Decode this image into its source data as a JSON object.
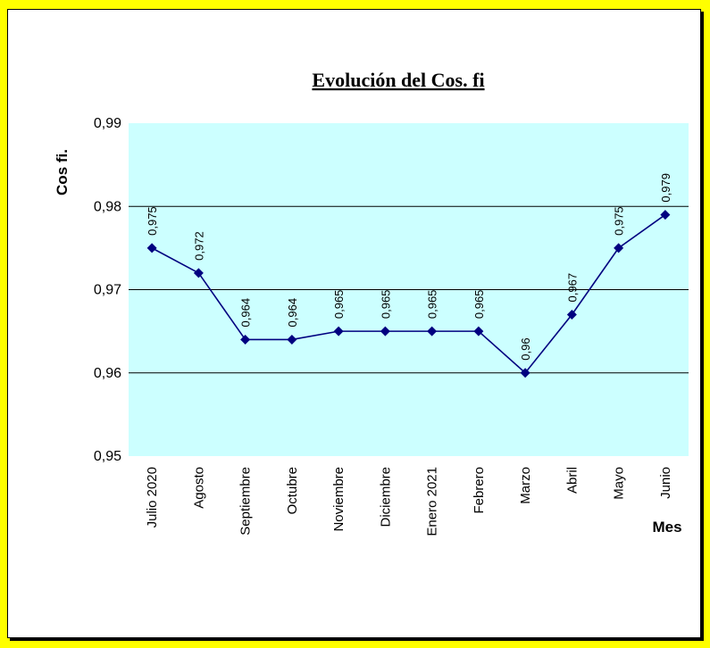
{
  "chart_data": {
    "type": "line",
    "title": "Evolución del Cos. fi",
    "ylabel": "Cos fi.",
    "xlabel": "Mes",
    "ylim": [
      0.95,
      0.99
    ],
    "yticks": [
      "0,95",
      "0,96",
      "0,97",
      "0,98",
      "0,99"
    ],
    "grid": true,
    "legend": "none",
    "categories": [
      "Julio 2020",
      "Agosto",
      "Septiembre",
      "Octubre",
      "Noviembre",
      "Diciembre",
      "Enero 2021",
      "Febrero",
      "Marzo",
      "Abril",
      "Mayo",
      "Junio"
    ],
    "values": [
      0.975,
      0.972,
      0.964,
      0.964,
      0.965,
      0.965,
      0.965,
      0.965,
      0.96,
      0.967,
      0.975,
      0.979
    ],
    "data_labels": [
      "0,975",
      "0,972",
      "0,964",
      "0,964",
      "0,965",
      "0,965",
      "0,965",
      "0,965",
      "0,96",
      "0,967",
      "0,975",
      "0,979"
    ]
  },
  "colors": {
    "page_background": "#ffff00",
    "plot_background": "#ccffff",
    "series": "#000080",
    "gridline": "#000000"
  }
}
